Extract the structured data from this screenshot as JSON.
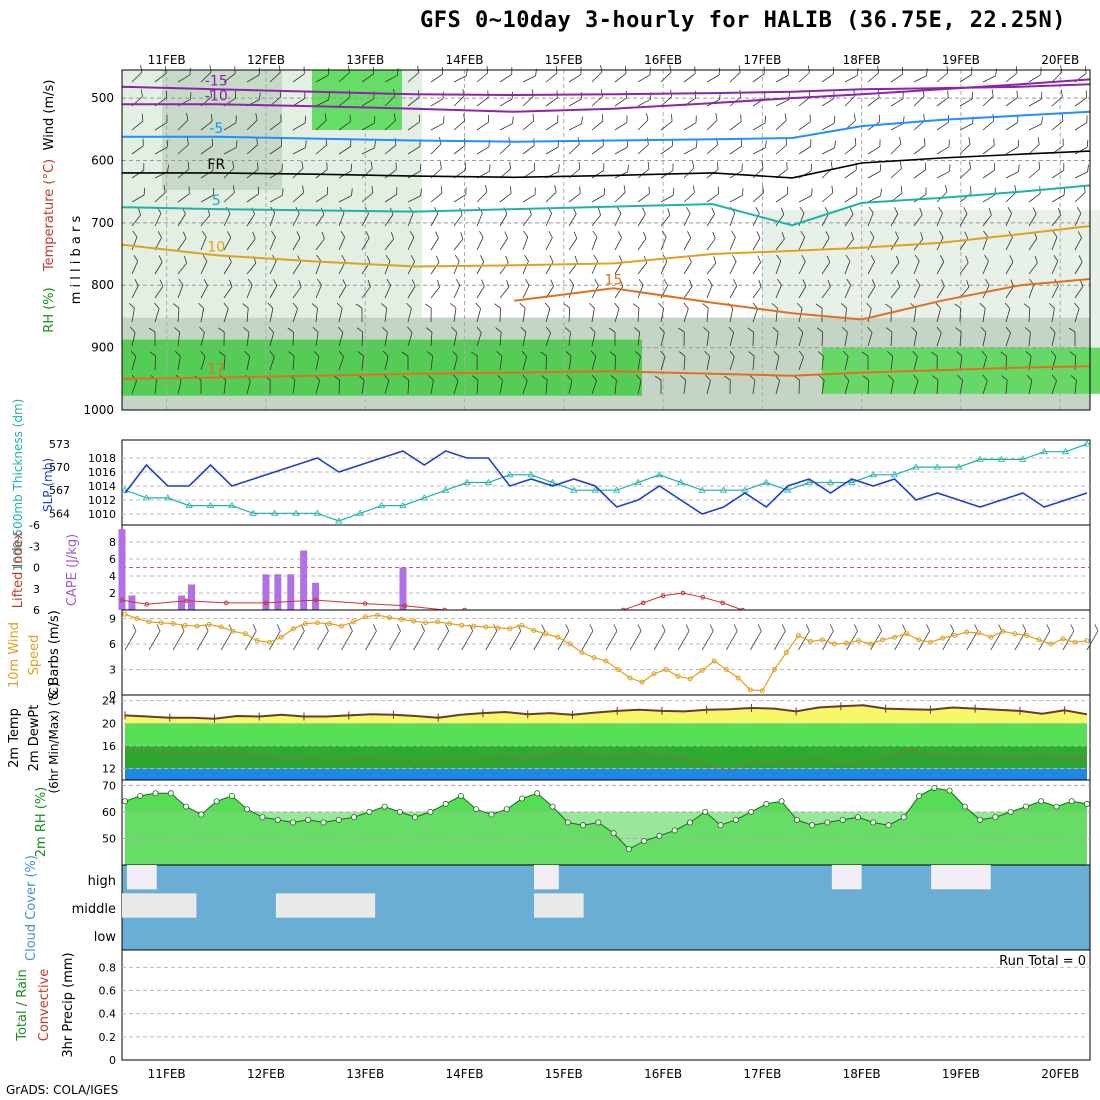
{
  "title": "GFS 0~10day 3-hourly for HALIB (36.75E, 22.25N)",
  "credit": "GrADS: COLA/IGES",
  "chart_data": {
    "type": "meteogram",
    "x_ticks": [
      "11FEB",
      "12FEB",
      "13FEB",
      "14FEB",
      "15FEB",
      "16FEB",
      "17FEB",
      "18FEB",
      "19FEB",
      "20FEB"
    ],
    "x_range_days": [
      10.55,
      20.3
    ],
    "panels": [
      {
        "id": "upper-air",
        "ylabels": [
          {
            "text": "Wind (m/s)",
            "color": "#000000"
          },
          {
            "text": "Temperature (°C)",
            "color": "#c0392b"
          },
          {
            "text": "RH (%)",
            "color": "#1a8c1a"
          },
          {
            "text": "m i l l i b a r s",
            "color": "#000000"
          }
        ],
        "ylim_mb": [
          1000,
          455
        ],
        "yticks": [
          "500",
          "600",
          "700",
          "800",
          "900",
          "1000"
        ],
        "ytick_values": [
          500,
          600,
          700,
          800,
          900,
          1000
        ],
        "isotherms": [
          {
            "label": "-15",
            "color": "#8e24aa",
            "mb": [
              482,
              486,
              490,
              494,
              495,
              494,
              492,
              490,
              486,
              484,
              482,
              478
            ]
          },
          {
            "label": "-10",
            "color": "#8e24aa",
            "mb": [
              510,
              510,
              513,
              517,
              522,
              517,
              508,
              500,
              494,
              486,
              478,
              470
            ]
          },
          {
            "label": "-5",
            "color": "#1e90ff",
            "mb": [
              562,
              562,
              565,
              568,
              570,
              568,
              566,
              564,
              545,
              535,
              528,
              522
            ]
          },
          {
            "label": "FR",
            "color": "#000000",
            "mb": [
              620,
              620,
              622,
              625,
              627,
              624,
              620,
              628,
              604,
              596,
              590,
              585
            ]
          },
          {
            "label": "5",
            "color": "#20b2aa",
            "mb": [
              675,
              678,
              680,
              682,
              678,
              674,
              670,
              704,
              668,
              660,
              650,
              640
            ]
          },
          {
            "label": "10",
            "color": "#e0a020",
            "mb": [
              735,
              752,
              762,
              770,
              768,
              765,
              750,
              745,
              740,
              732,
              718,
              705
            ]
          },
          {
            "label": "15",
            "color": "#e07020",
            "mb": [
              null,
              null,
              null,
              null,
              825,
              805,
              828,
              845,
              855,
              825,
              800,
              790
            ]
          },
          {
            "label": "17",
            "color": "#e07020",
            "mb": [
              950,
              948,
              945,
              942,
              940,
              938,
              942,
              945,
              940,
              936,
              932,
              930
            ]
          }
        ],
        "isotherm_days": [
          10.55,
          11.5,
          12.5,
          13.5,
          14.5,
          15.5,
          16.5,
          17.3,
          18.0,
          18.8,
          19.6,
          20.3
        ],
        "rh_moist_layer_mb": [
          900,
          990
        ]
      },
      {
        "id": "slp-thickness",
        "ylabels": [
          {
            "text": "1000-500mb Thickness (dm)",
            "color": "#20b2aa"
          },
          {
            "text": "SLP (mb)",
            "color": "#1e3fcc"
          }
        ],
        "yticks_left": [
          "564",
          "567",
          "570",
          "573"
        ],
        "yticks_right": [
          "1010",
          "1012",
          "1014",
          "1016",
          "1018"
        ],
        "slp_mb": [
          1013,
          1017,
          1014,
          1014,
          1017,
          1014,
          1015,
          1016,
          1017,
          1018,
          1016,
          1017,
          1018,
          1019,
          1017,
          1019,
          1018,
          1018,
          1014,
          1015,
          1014,
          1015,
          1014,
          1011,
          1012,
          1014,
          1012,
          1010,
          1011,
          1013,
          1011,
          1014,
          1015,
          1013,
          1015,
          1014,
          1015,
          1012,
          1013,
          1012,
          1011,
          1012,
          1013,
          1011,
          1012,
          1013
        ],
        "thickness_dm": [
          567,
          566,
          566,
          565,
          565,
          565,
          564,
          564,
          564,
          564,
          563,
          564,
          565,
          565,
          566,
          567,
          568,
          568,
          569,
          569,
          568,
          567,
          567,
          567,
          568,
          569,
          568,
          567,
          567,
          567,
          568,
          567,
          568,
          568,
          568,
          569,
          569,
          570,
          570,
          570,
          571,
          571,
          571,
          572,
          572,
          573
        ],
        "slp_ylim": [
          1009,
          1020
        ],
        "thickness_ylim": [
          563,
          573
        ]
      },
      {
        "id": "cape-li",
        "ylabels": [
          {
            "text": "Lifted Index",
            "color": "#c0392b"
          },
          {
            "text": "CAPE (J/kg)",
            "color": "#a05ad0"
          }
        ],
        "yticks_left": [
          "-6",
          "-3",
          "0",
          "3",
          "6"
        ],
        "yticks_right": [
          "2",
          "4",
          "6",
          "8"
        ],
        "cape_bars": [
          {
            "day": 10.55,
            "value": 9.5
          },
          {
            "day": 10.65,
            "value": 1.7
          },
          {
            "day": 11.15,
            "value": 1.7
          },
          {
            "day": 11.25,
            "value": 3.0
          },
          {
            "day": 12.0,
            "value": 4.2
          },
          {
            "day": 12.12,
            "value": 4.2
          },
          {
            "day": 12.25,
            "value": 4.2
          },
          {
            "day": 12.38,
            "value": 7.0
          },
          {
            "day": 12.5,
            "value": 3.2
          },
          {
            "day": 13.38,
            "value": 5.0
          }
        ],
        "cape_ylim": [
          0,
          10
        ],
        "li_days": [
          10.55,
          10.8,
          11.2,
          11.6,
          12.0,
          12.5,
          13.0,
          13.4,
          13.8,
          14.0,
          15.6,
          15.8,
          16.0,
          16.2,
          16.4,
          16.6,
          16.8
        ],
        "li_values": [
          4.6,
          5.2,
          4.7,
          5.0,
          5.0,
          4.6,
          5.1,
          5.4,
          6.0,
          6.0,
          6.0,
          5.0,
          4.0,
          3.6,
          4.2,
          5.0,
          6.0
        ]
      },
      {
        "id": "wind-10m",
        "ylabels": [
          {
            "text": "10m Wind",
            "color": "#e0a020"
          },
          {
            "text": "Speed",
            "color": "#e0a020"
          },
          {
            "text": "& Barbs (m/s)",
            "color": "#000000"
          }
        ],
        "yticks": [
          "0",
          "3",
          "6",
          "9"
        ],
        "ylim": [
          0,
          10
        ],
        "speed_ms": [
          9.5,
          9,
          8.6,
          8.5,
          8.4,
          8.2,
          8.1,
          8.3,
          8.0,
          7.5,
          7.2,
          6.4,
          6.2,
          6.8,
          7.8,
          8.4,
          8.5,
          8.4,
          8.1,
          8.6,
          9.2,
          9.4,
          9.1,
          8.9,
          8.7,
          8.5,
          8.6,
          8.4,
          8.2,
          8.1,
          8.0,
          7.9,
          7.8,
          8.2,
          7.6,
          7.2,
          6.8,
          6.0,
          5.0,
          4.4,
          4.0,
          3.0,
          2.0,
          1.5,
          2.5,
          3.0,
          2.2,
          1.9,
          2.9,
          4.0,
          3.0,
          2.0,
          0.6,
          0.5,
          3.0,
          5.0,
          7.0,
          6.3,
          6.5,
          6.0,
          6.1,
          6.4,
          6.0,
          6.5,
          6.8,
          7.2,
          6.5,
          6.2,
          6.7,
          7.0,
          7.4,
          7.3,
          6.8,
          7.5,
          7.2,
          7.0,
          6.5,
          6.0,
          6.6,
          6.2,
          6.4
        ]
      },
      {
        "id": "temp-2m",
        "ylabels": [
          {
            "text": "2m Temp",
            "color": "#000000"
          },
          {
            "text": "2m DewPt",
            "color": "#000000"
          },
          {
            "text": "(6hr Min/Max) (°C)",
            "color": "#000000"
          }
        ],
        "yticks": [
          "12",
          "16",
          "20",
          "24"
        ],
        "ylim": [
          10,
          25
        ],
        "temp_c": [
          21.4,
          21.2,
          21.0,
          21.0,
          20.8,
          21.3,
          21.2,
          21.5,
          21.2,
          21.2,
          21.4,
          21.6,
          21.5,
          21.3,
          21.0,
          21.5,
          21.8,
          22.0,
          21.6,
          21.8,
          21.5,
          21.9,
          22.2,
          22.4,
          22.2,
          22.1,
          22.4,
          22.5,
          22.7,
          22.6,
          22.1,
          22.8,
          23.0,
          23.2,
          22.6,
          22.5,
          22.4,
          22.8,
          22.6,
          22.4,
          22.2,
          21.7,
          22.3,
          21.6
        ],
        "dewpt_c": [
          15.0,
          15.2,
          14.8,
          14.7,
          15.0,
          14.8,
          14.5,
          14.0,
          14.0,
          13.8,
          13.7,
          14.0,
          13.6,
          13.4,
          13.7,
          13.6,
          13.8,
          14.4,
          13.9,
          14.6,
          15.0,
          14.4,
          14.3,
          14.6,
          14.3,
          13.9,
          13.0,
          11.5,
          13.2,
          13.0,
          13.5,
          14.0,
          13.0,
          13.3,
          14.2,
          15.3,
          14.6,
          14.2,
          14.5,
          14.0,
          14.2,
          14.4,
          14.0,
          14.2
        ]
      },
      {
        "id": "rh-2m",
        "ylabels": [
          {
            "text": "2m RH (%)",
            "color": "#1a8c1a"
          }
        ],
        "yticks": [
          "50",
          "60",
          "70"
        ],
        "ylim": [
          40,
          72
        ],
        "rh_pct": [
          64,
          66,
          67,
          67,
          62,
          59,
          64,
          66,
          61,
          58,
          57,
          56,
          57,
          56,
          57,
          58,
          60,
          62,
          60,
          58,
          60,
          63,
          66,
          61,
          59,
          61,
          65,
          67,
          62,
          56,
          55,
          56,
          52,
          46,
          49,
          51,
          53,
          56,
          60,
          55,
          57,
          60,
          63,
          64,
          57,
          55,
          56,
          57,
          58,
          56,
          55,
          58,
          66,
          69,
          68,
          62,
          57,
          58,
          60,
          62,
          64,
          62,
          64,
          63
        ]
      },
      {
        "id": "cloud-cover",
        "ylabels": [
          {
            "text": "Cloud Cover (%)",
            "color": "#4a90c8"
          }
        ],
        "yticks": [
          "high",
          "middle",
          "low"
        ]
      },
      {
        "id": "precip",
        "ylabels": [
          {
            "text": "Total / Rain",
            "color": "#1a8c1a"
          },
          {
            "text": "Convective",
            "color": "#c0392b"
          },
          {
            "text": "3hr Precip (mm)",
            "color": "#000000"
          }
        ],
        "yticks": [
          "0",
          "0.2",
          "0.4",
          "0.6",
          "0.8"
        ],
        "ylim": [
          0,
          0.95
        ],
        "run_total": "Run Total = 0"
      }
    ]
  }
}
